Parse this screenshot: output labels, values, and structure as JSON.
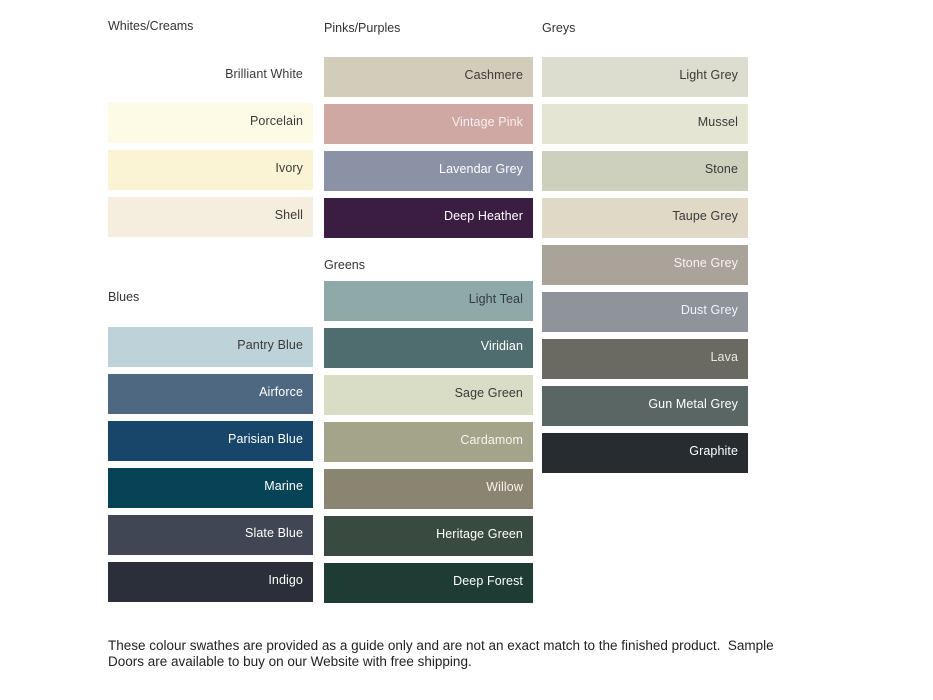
{
  "page": {
    "background": "#ffffff",
    "heading_color": "#333333",
    "footer_text": "These colour swathes are provided as a guide only and are not an exact match to the finished product.  Sample\nDoors are available to buy on our Website with free shipping."
  },
  "chart_data": {
    "type": "table",
    "title": "Colour swatch guide",
    "sections": [
      {
        "id": "whites-creams",
        "title": "Whites/Creams",
        "swatches": [
          {
            "name": "Brilliant White",
            "color": "#ffffff",
            "label_color": "#3a3a3a"
          },
          {
            "name": "Porcelain",
            "color": "#fdfae6",
            "label_color": "#3a3a3a"
          },
          {
            "name": "Ivory",
            "color": "#faf4d5",
            "label_color": "#3a3a3a"
          },
          {
            "name": "Shell",
            "color": "#f5edde",
            "label_color": "#3a3a3a"
          }
        ]
      },
      {
        "id": "blues",
        "title": "Blues",
        "swatches": [
          {
            "name": "Pantry Blue",
            "color": "#bdd3d9",
            "label_color": "#3a3a3a"
          },
          {
            "name": "Airforce",
            "color": "#4d6880",
            "label_color": "#ffffff"
          },
          {
            "name": "Parisian Blue",
            "color": "#17466a",
            "label_color": "#ffffff"
          },
          {
            "name": "Marine",
            "color": "#074357",
            "label_color": "#ffffff"
          },
          {
            "name": "Slate Blue",
            "color": "#404654",
            "label_color": "#ffffff"
          },
          {
            "name": "Indigo",
            "color": "#2a2f3a",
            "label_color": "#ffffff"
          }
        ]
      },
      {
        "id": "pinks-purples",
        "title": "Pinks/Purples",
        "swatches": [
          {
            "name": "Cashmere",
            "color": "#d2ccba",
            "label_color": "#3a3a3a"
          },
          {
            "name": "Vintage Pink",
            "color": "#cfa8a4",
            "label_color": "#f7eeee"
          },
          {
            "name": "Lavendar Grey",
            "color": "#8c92a6",
            "label_color": "#ffffff"
          },
          {
            "name": "Deep Heather",
            "color": "#3b1d42",
            "label_color": "#ffffff"
          }
        ]
      },
      {
        "id": "greens",
        "title": "Greens",
        "swatches": [
          {
            "name": "Light Teal",
            "color": "#8ea9a7",
            "label_color": "#323c3c"
          },
          {
            "name": "Viridian",
            "color": "#4f6d6f",
            "label_color": "#ffffff"
          },
          {
            "name": "Sage Green",
            "color": "#d9ddc6",
            "label_color": "#3a3a3a"
          },
          {
            "name": "Cardamom",
            "color": "#a3a489",
            "label_color": "#f5f5ef"
          },
          {
            "name": "Willow",
            "color": "#8a8570",
            "label_color": "#f5f3ea"
          },
          {
            "name": "Heritage Green",
            "color": "#394a40",
            "label_color": "#ffffff"
          },
          {
            "name": "Deep Forest",
            "color": "#1e3b34",
            "label_color": "#ffffff"
          }
        ]
      },
      {
        "id": "greys",
        "title": "Greys",
        "swatches": [
          {
            "name": "Light Grey",
            "color": "#dcddcf",
            "label_color": "#3a3a3a"
          },
          {
            "name": "Mussel",
            "color": "#e4e5d3",
            "label_color": "#3a3a3a"
          },
          {
            "name": "Stone",
            "color": "#cdd0bd",
            "label_color": "#3a3a3a"
          },
          {
            "name": "Taupe Grey",
            "color": "#e0d9c6",
            "label_color": "#3a3a3a"
          },
          {
            "name": "Stone Grey",
            "color": "#a9a399",
            "label_color": "#f6f4f1"
          },
          {
            "name": "Dust Grey",
            "color": "#8f939a",
            "label_color": "#f2f3f5"
          },
          {
            "name": "Lava",
            "color": "#6b6a62",
            "label_color": "#e9e8e4"
          },
          {
            "name": "Gun Metal Grey",
            "color": "#596664",
            "label_color": "#ffffff"
          },
          {
            "name": "Graphite",
            "color": "#272c30",
            "label_color": "#ffffff"
          }
        ]
      }
    ]
  }
}
